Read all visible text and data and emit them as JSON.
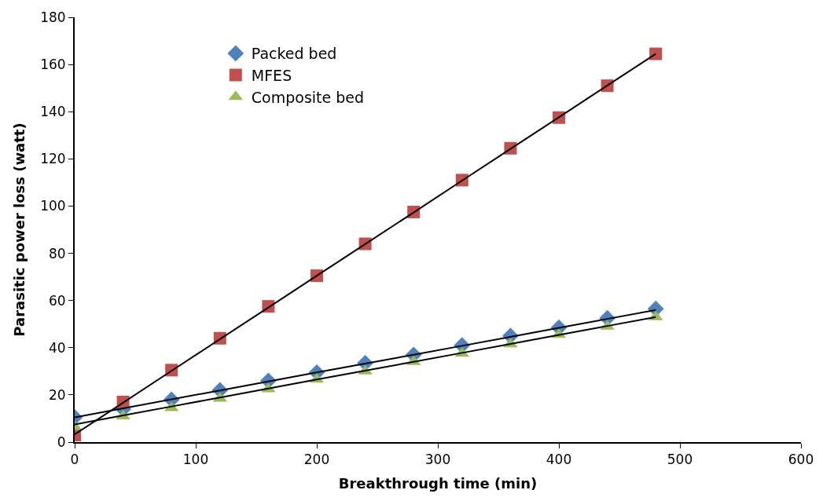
{
  "chart_data": {
    "type": "scatter",
    "xlabel": "Breakthrough time (min)",
    "ylabel": "Parasitic power loss (watt)",
    "x": [
      0,
      40,
      80,
      120,
      160,
      200,
      240,
      280,
      320,
      360,
      400,
      440,
      480
    ],
    "series": [
      {
        "name": "Packed bed",
        "color": "#4f81bd",
        "marker": "diamond",
        "values": [
          10.5,
          14,
          18,
          22,
          26,
          29.5,
          33.5,
          37,
          41,
          45,
          48.5,
          52.5,
          56.5
        ]
      },
      {
        "name": "MFES",
        "color": "#c0504d",
        "marker": "square",
        "values": [
          3,
          17,
          30.5,
          44,
          57.5,
          70.5,
          84,
          97.5,
          111,
          124.5,
          137.5,
          151,
          164.5
        ]
      },
      {
        "name": "Composite bed",
        "color": "#9bbb59",
        "marker": "triangle",
        "values": [
          6.5,
          11,
          14.5,
          18.5,
          22.5,
          26.5,
          30,
          34,
          37.5,
          41.5,
          45.5,
          49,
          53
        ]
      },
      {
        "type": "line",
        "color": "#000000",
        "values": [
          10.5,
          14.3,
          18.1,
          21.9,
          25.7,
          29.5,
          33.3,
          37.0,
          40.8,
          44.6,
          48.4,
          52.2,
          56
        ]
      },
      {
        "type": "line",
        "color": "#000000",
        "values": [
          3.3,
          16.7,
          30.2,
          43.6,
          57.0,
          70.5,
          83.9,
          97.3,
          110.8,
          124.2,
          137.6,
          151.1,
          164.5
        ]
      },
      {
        "type": "line",
        "color": "#000000",
        "values": [
          7.5,
          11.3,
          15.1,
          18.9,
          22.7,
          26.5,
          30.3,
          34.0,
          37.8,
          41.6,
          45.4,
          49.2,
          53
        ]
      }
    ],
    "xlim": [
      0,
      600
    ],
    "xticks": [
      0,
      100,
      200,
      300,
      400,
      500,
      600
    ],
    "ylim": [
      0,
      180
    ],
    "yticks": [
      0,
      20,
      40,
      60,
      80,
      100,
      120,
      140,
      160,
      180
    ],
    "legend": "top left"
  }
}
